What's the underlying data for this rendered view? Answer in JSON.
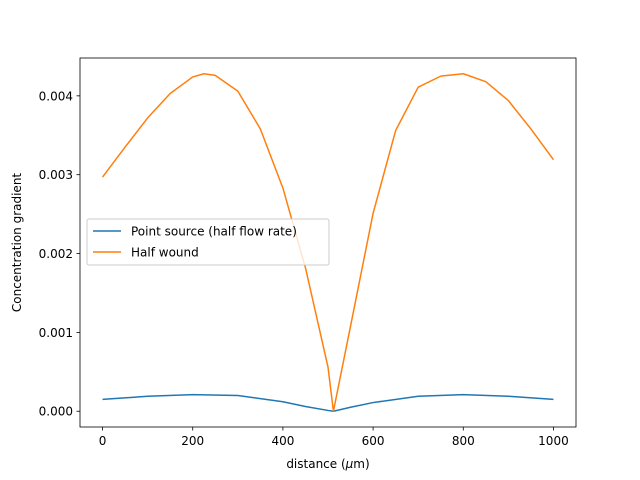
{
  "chart_data": {
    "type": "line",
    "title": "",
    "xlabel_prefix": "distance (",
    "xlabel_symbol": "μ",
    "xlabel_suffix": "m)",
    "ylabel": "Concentration gradient",
    "xlim": [
      -50,
      1050
    ],
    "ylim": [
      -0.0002,
      0.00448
    ],
    "xticks": [
      0,
      200,
      400,
      600,
      800,
      1000
    ],
    "xtick_labels": [
      "0",
      "200",
      "400",
      "600",
      "800",
      "1000"
    ],
    "yticks": [
      0.0,
      0.001,
      0.002,
      0.003,
      0.004
    ],
    "ytick_labels": [
      "0.000",
      "0.001",
      "0.002",
      "0.003",
      "0.004"
    ],
    "grid": false,
    "legend_position": "center-left",
    "series": [
      {
        "name": "Point source (half flow rate)",
        "color": "#1f77b4",
        "x": [
          0,
          100,
          200,
          300,
          400,
          450,
          500,
          512,
          550,
          600,
          700,
          800,
          900,
          1000
        ],
        "y": [
          0.00015,
          0.00019,
          0.00021,
          0.0002,
          0.00012,
          6e-05,
          1e-05,
          0.0,
          5e-05,
          0.00011,
          0.00019,
          0.00021,
          0.00019,
          0.00015
        ]
      },
      {
        "name": "Half wound",
        "color": "#ff7f0e",
        "x": [
          0,
          50,
          100,
          150,
          200,
          225,
          250,
          300,
          350,
          400,
          450,
          500,
          512,
          550,
          600,
          650,
          700,
          750,
          800,
          850,
          900,
          950,
          1000
        ],
        "y": [
          0.00297,
          0.00335,
          0.00372,
          0.00403,
          0.00424,
          0.00428,
          0.00426,
          0.00406,
          0.00358,
          0.00283,
          0.00182,
          0.00056,
          0.0,
          0.00108,
          0.00251,
          0.00356,
          0.00411,
          0.00425,
          0.00428,
          0.00418,
          0.00394,
          0.00358,
          0.00319
        ]
      }
    ]
  }
}
